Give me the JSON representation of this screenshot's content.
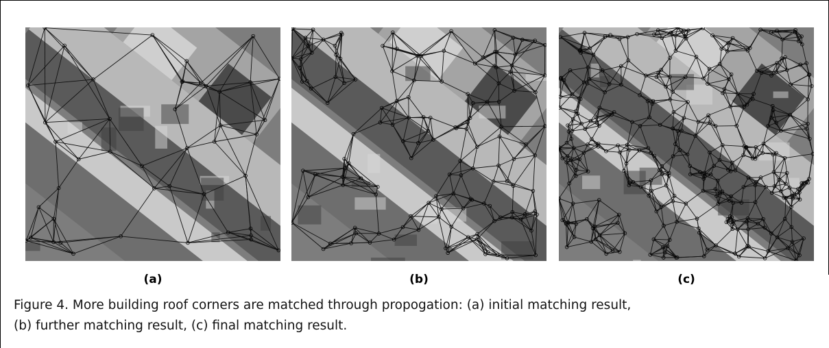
{
  "figure": {
    "panels": [
      {
        "label": "(a)"
      },
      {
        "label": "(b)"
      },
      {
        "label": "(c)"
      }
    ],
    "caption": [
      "Figure 4. More building roof corners are matched through propogation: (a) initial matching result,",
      "(b) further matching result, (c) final matching result."
    ]
  }
}
